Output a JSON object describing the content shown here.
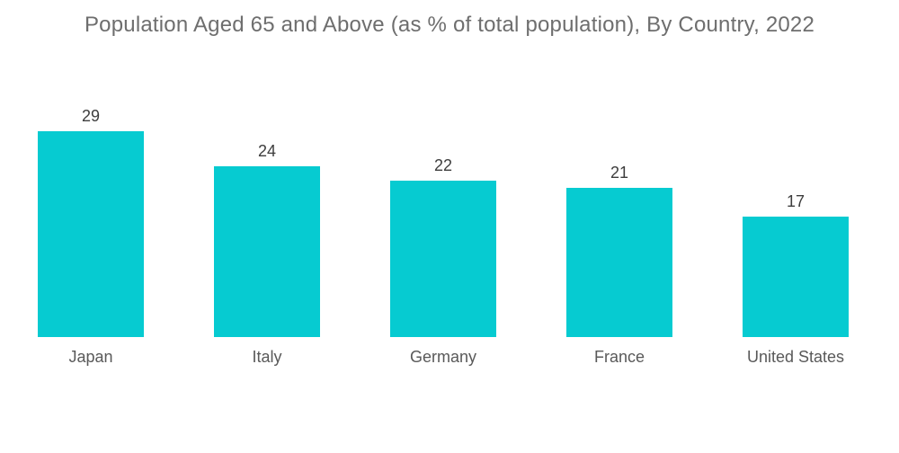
{
  "page": {
    "background_color": "#ffffff"
  },
  "chart_data": {
    "type": "bar",
    "title": "Population Aged 65 and Above (as % of total population), By Country, 2022",
    "categories": [
      "Japan",
      "Italy",
      "Germany",
      "France",
      "United States"
    ],
    "values": [
      29,
      24,
      22,
      21,
      17
    ],
    "value_labels_shown": true,
    "xlabel": "",
    "ylabel": "",
    "ylim": [
      0,
      30
    ],
    "grid": false,
    "legend": false,
    "axes_shown": false,
    "orientation": "vertical",
    "colors": {
      "bar_fill": "#06cbd1",
      "title_text": "#6e6e6e",
      "value_label_text": "#3d3d3d",
      "category_label_text": "#595959"
    }
  }
}
